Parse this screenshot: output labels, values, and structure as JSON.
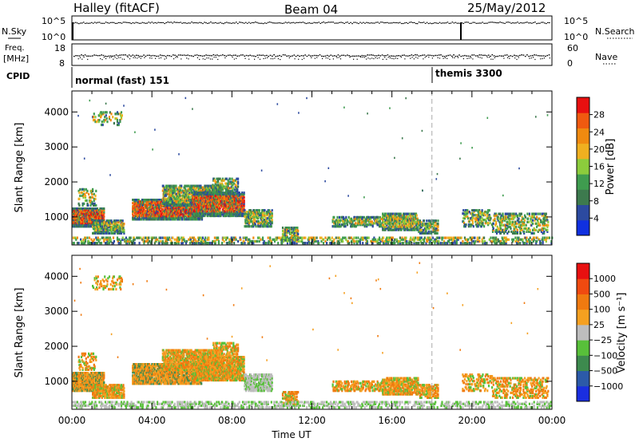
{
  "header": {
    "station": "Halley (fitACF)",
    "beam": "Beam 04",
    "date": "25/May/2012"
  },
  "top_panels": {
    "nsky_label": "N.Sky",
    "nsearch_label": "N.Search",
    "nsky_ticks": [
      "10^5",
      "10^0"
    ],
    "nsearch_ticks": [
      "10^5",
      "10^0"
    ],
    "freq_label_1": "Freq.",
    "freq_label_2": "[MHz]",
    "freq_ticks": [
      "18",
      "8"
    ],
    "nave_label": "Nave",
    "nave_ticks": [
      "60",
      "0"
    ],
    "cpid_label": "CPID",
    "modes": [
      {
        "name": "normal (fast) 151",
        "start_hour": 0
      },
      {
        "name": "themis 3300",
        "start_hour": 18
      }
    ]
  },
  "chart_data": [
    {
      "type": "heatmap",
      "quantity": "Power",
      "ylabel": "Slant Range [km]",
      "xlabel": "",
      "xlim": [
        0,
        24
      ],
      "ylim": [
        200,
        4600
      ],
      "yticks": [
        1000,
        2000,
        3000,
        4000
      ],
      "colorbar_label": "Power [dB]",
      "colorbar_ticks": [
        "4",
        "8",
        "12",
        "16",
        "20",
        "24",
        "28"
      ],
      "colorbar_colors": [
        "#1030e0",
        "#2c4aa0",
        "#3d7a4e",
        "#3f9c4f",
        "#8ccc3c",
        "#f0b020",
        "#f08a10",
        "#f05a10",
        "#e81010"
      ],
      "cursor_hour": 18
    },
    {
      "type": "heatmap",
      "quantity": "Velocity",
      "ylabel": "Slant Range [km]",
      "xlabel": "Time UT",
      "xlim": [
        0,
        24
      ],
      "ylim": [
        200,
        4600
      ],
      "yticks": [
        1000,
        2000,
        3000,
        4000
      ],
      "xticks": [
        "00:00",
        "04:00",
        "08:00",
        "12:00",
        "16:00",
        "20:00",
        "00:00"
      ],
      "colorbar_label": "Velocity [m s⁻¹]",
      "colorbar_ticks": [
        "1000",
        "500",
        "100",
        "25",
        "−25",
        "−100",
        "−500",
        "−1000"
      ],
      "colorbar_colors": [
        "#1a2ee0",
        "#2c5aa8",
        "#3d8a4e",
        "#58c03a",
        "#bdbdbd",
        "#f5a020",
        "#f07a10",
        "#f04a10",
        "#e81010"
      ],
      "cursor_hour": 18
    }
  ]
}
